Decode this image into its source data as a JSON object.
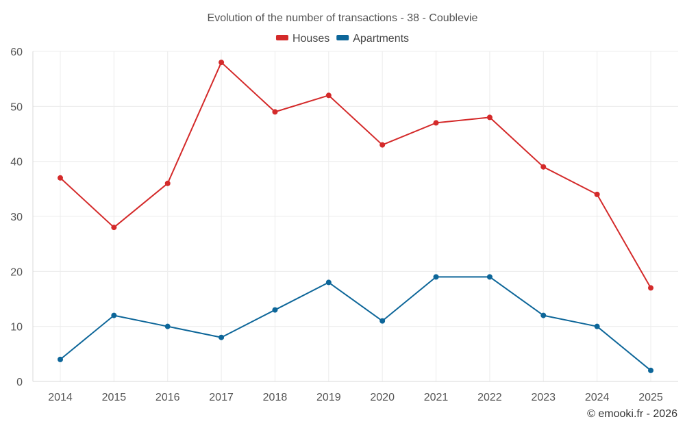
{
  "chart_data": {
    "type": "line",
    "title": "Evolution of the number of transactions - 38 - Coublevie",
    "xlabel": "",
    "ylabel": "",
    "categories": [
      "2014",
      "2015",
      "2016",
      "2017",
      "2018",
      "2019",
      "2020",
      "2021",
      "2022",
      "2023",
      "2024",
      "2025"
    ],
    "ylim": [
      0,
      60
    ],
    "yticks": [
      0,
      10,
      20,
      30,
      40,
      50,
      60
    ],
    "grid": true,
    "legend_position": "top-center",
    "series": [
      {
        "name": "Houses",
        "color": "#d42a2a",
        "values": [
          37,
          28,
          36,
          58,
          49,
          52,
          43,
          47,
          48,
          39,
          34,
          17
        ]
      },
      {
        "name": "Apartments",
        "color": "#0d6699",
        "values": [
          4,
          12,
          10,
          8,
          13,
          18,
          11,
          19,
          19,
          12,
          10,
          2
        ]
      }
    ]
  },
  "credit": "© emooki.fr - 2026"
}
